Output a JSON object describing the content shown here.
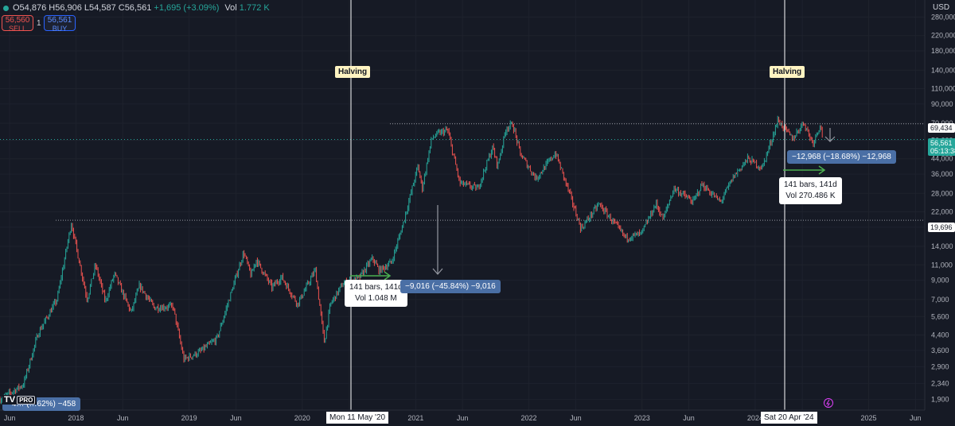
{
  "header": {
    "open": "O54,876",
    "high": "H56,906",
    "low": "L54,587",
    "close": "C56,561",
    "change": "+1,695 (+3.09%)",
    "vol_label": "Vol",
    "vol_value": "1.772 K",
    "sell_price": "56,560",
    "sell_label": "SELL",
    "quantity": "1",
    "buy_price": "56,561",
    "buy_label": "BUY"
  },
  "currency": "USD",
  "logo_text": "TV",
  "logo_badge": "PRO",
  "annotations": {
    "halving_1": "Halving",
    "halving_2": "Halving",
    "box1_line1": "141 bars, 141d",
    "box1_line2": "Vol 1.048 M",
    "box2_line1": "141 bars, 141d",
    "box2_line2": "Vol 270.486 K",
    "drop_1": "−9,016 (−45.84%) −9,016",
    "drop_2": "−12,968 (−18.68%) −12,968",
    "left_partial": "−4… (…62%) −458",
    "level_high": "69,434",
    "level_low": "19,696",
    "current_price": "56,561",
    "countdown": "05:13:38",
    "date_1": "Mon 11 May '20",
    "date_2": "Sat 20 Apr '24"
  },
  "colors": {
    "background": "#161a25",
    "up": "#26a69a",
    "down": "#ef5350",
    "arrow": "#4caf50",
    "measure_box": "#4a6fa5"
  },
  "chart_data": {
    "type": "candlestick",
    "scale": "log",
    "ylim": [
      1650,
      350000
    ],
    "yticks": [
      280000,
      220000,
      180000,
      140000,
      110000,
      90000,
      70000,
      56000,
      44000,
      36000,
      28000,
      22000,
      18000,
      14000,
      11000,
      9000,
      7000,
      5600,
      4400,
      3600,
      2900,
      2340,
      1900
    ],
    "ytick_labels": [
      "280,000",
      "220,000",
      "180,000",
      "140,000",
      "110,000",
      "90,000",
      "70,000",
      "56,000",
      "44,000",
      "36,000",
      "28,000",
      "22,000",
      "18,000",
      "14,000",
      "11,000",
      "9,000",
      "7,000",
      "5,600",
      "4,400",
      "3,600",
      "2,900",
      "2,340",
      "1,900"
    ],
    "xlim": [
      "2017-05-01",
      "2025-07-01"
    ],
    "xticks": [
      "2017-06-01",
      "2018-01-01",
      "2018-06-01",
      "2019-01-01",
      "2019-06-01",
      "2020-01-01",
      "2020-06-01",
      "2021-01-01",
      "2021-06-01",
      "2022-01-01",
      "2022-06-01",
      "2023-01-01",
      "2023-06-01",
      "2024-01-01",
      "2024-06-01",
      "2025-01-01",
      "2025-06-01"
    ],
    "xtick_labels": [
      "Jun",
      "2018",
      "Jun",
      "2019",
      "Jun",
      "2020",
      "Jun",
      "2021",
      "Jun",
      "2022",
      "Jun",
      "2023",
      "Jun",
      "2024",
      "Jun",
      "2025",
      "Jun"
    ],
    "path": [
      [
        "2017-05-01",
        1900
      ],
      [
        "2017-07-15",
        2300
      ],
      [
        "2017-09-01",
        4500
      ],
      [
        "2017-11-01",
        7000
      ],
      [
        "2017-12-17",
        19000
      ],
      [
        "2018-02-06",
        7000
      ],
      [
        "2018-03-05",
        11000
      ],
      [
        "2018-04-06",
        6800
      ],
      [
        "2018-05-05",
        9800
      ],
      [
        "2018-06-28",
        5900
      ],
      [
        "2018-07-25",
        8400
      ],
      [
        "2018-09-10",
        6300
      ],
      [
        "2018-11-10",
        6400
      ],
      [
        "2018-12-15",
        3200
      ],
      [
        "2019-02-01",
        3500
      ],
      [
        "2019-04-01",
        4200
      ],
      [
        "2019-05-20",
        8000
      ],
      [
        "2019-06-26",
        13000
      ],
      [
        "2019-07-20",
        9500
      ],
      [
        "2019-08-05",
        11800
      ],
      [
        "2019-09-25",
        8200
      ],
      [
        "2019-10-26",
        9400
      ],
      [
        "2019-12-17",
        6600
      ],
      [
        "2020-02-12",
        10300
      ],
      [
        "2020-03-12",
        4000
      ],
      [
        "2020-04-01",
        6600
      ],
      [
        "2020-05-11",
        8600
      ],
      [
        "2020-07-01",
        9200
      ],
      [
        "2020-08-15",
        12000
      ],
      [
        "2020-09-05",
        10200
      ],
      [
        "2020-10-15",
        11400
      ],
      [
        "2020-11-20",
        18500
      ],
      [
        "2021-01-08",
        40000
      ],
      [
        "2021-01-22",
        30000
      ],
      [
        "2021-02-21",
        57000
      ],
      [
        "2021-03-13",
        61000
      ],
      [
        "2021-04-14",
        64000
      ],
      [
        "2021-05-23",
        32000
      ],
      [
        "2021-07-20",
        29800
      ],
      [
        "2021-09-06",
        51000
      ],
      [
        "2021-09-22",
        40000
      ],
      [
        "2021-10-20",
        66000
      ],
      [
        "2021-11-10",
        69000
      ],
      [
        "2021-12-04",
        47000
      ],
      [
        "2022-01-24",
        34000
      ],
      [
        "2022-03-28",
        47500
      ],
      [
        "2022-05-12",
        28000
      ],
      [
        "2022-06-18",
        17600
      ],
      [
        "2022-08-15",
        24400
      ],
      [
        "2022-10-01",
        19200
      ],
      [
        "2022-11-09",
        15700
      ],
      [
        "2022-12-30",
        16500
      ],
      [
        "2023-02-15",
        24500
      ],
      [
        "2023-03-10",
        20000
      ],
      [
        "2023-04-14",
        30000
      ],
      [
        "2023-06-15",
        25000
      ],
      [
        "2023-07-13",
        31500
      ],
      [
        "2023-09-11",
        25000
      ],
      [
        "2023-10-24",
        35000
      ],
      [
        "2023-12-08",
        44000
      ],
      [
        "2024-01-23",
        39000
      ],
      [
        "2024-02-28",
        60000
      ],
      [
        "2024-03-14",
        73000
      ],
      [
        "2024-05-01",
        57000
      ],
      [
        "2024-06-05",
        71000
      ],
      [
        "2024-07-05",
        54000
      ],
      [
        "2024-07-29",
        69000
      ],
      [
        "2024-08-07",
        56561
      ]
    ]
  }
}
